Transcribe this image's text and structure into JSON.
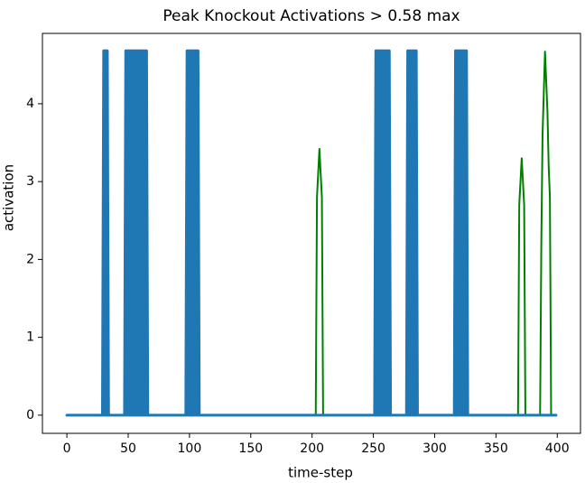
{
  "chart_data": {
    "type": "line",
    "title": "Peak Knockout Activations > 0.58 max",
    "x_label": "time-step",
    "y_label": "activation",
    "xlim": [
      -19.95,
      418.95
    ],
    "ylim": [
      -0.2335,
      4.9035
    ],
    "xticks": [
      0,
      50,
      100,
      150,
      200,
      250,
      300,
      350,
      400
    ],
    "yticks": [
      0,
      1,
      2,
      3,
      4
    ],
    "series": [
      {
        "color": "#008000",
        "filled": false,
        "x": [
          0,
          203,
          204,
          206,
          208,
          209,
          368,
          369,
          371,
          373,
          374,
          386,
          387,
          388,
          390,
          392,
          393,
          394,
          395,
          398
        ],
        "values": [
          0,
          0,
          2.8,
          3.42,
          2.8,
          0,
          0,
          2.7,
          3.3,
          2.7,
          0,
          0,
          2.2,
          3.6,
          4.67,
          3.9,
          3.2,
          2.8,
          0,
          0
        ]
      },
      {
        "color": "#1f77b4",
        "filled": true,
        "x": [
          0,
          29,
          30,
          33,
          34,
          47,
          48,
          65,
          66,
          97,
          98,
          107,
          108,
          251,
          252,
          263,
          264,
          277,
          278,
          285,
          286,
          316,
          317,
          326,
          327,
          399
        ],
        "values": [
          0,
          0,
          4.68,
          4.68,
          0,
          0,
          4.68,
          4.68,
          0,
          0,
          4.68,
          4.68,
          0,
          0,
          4.68,
          4.68,
          0,
          0,
          4.68,
          4.68,
          0,
          0,
          4.68,
          4.68,
          0,
          0
        ]
      }
    ]
  }
}
